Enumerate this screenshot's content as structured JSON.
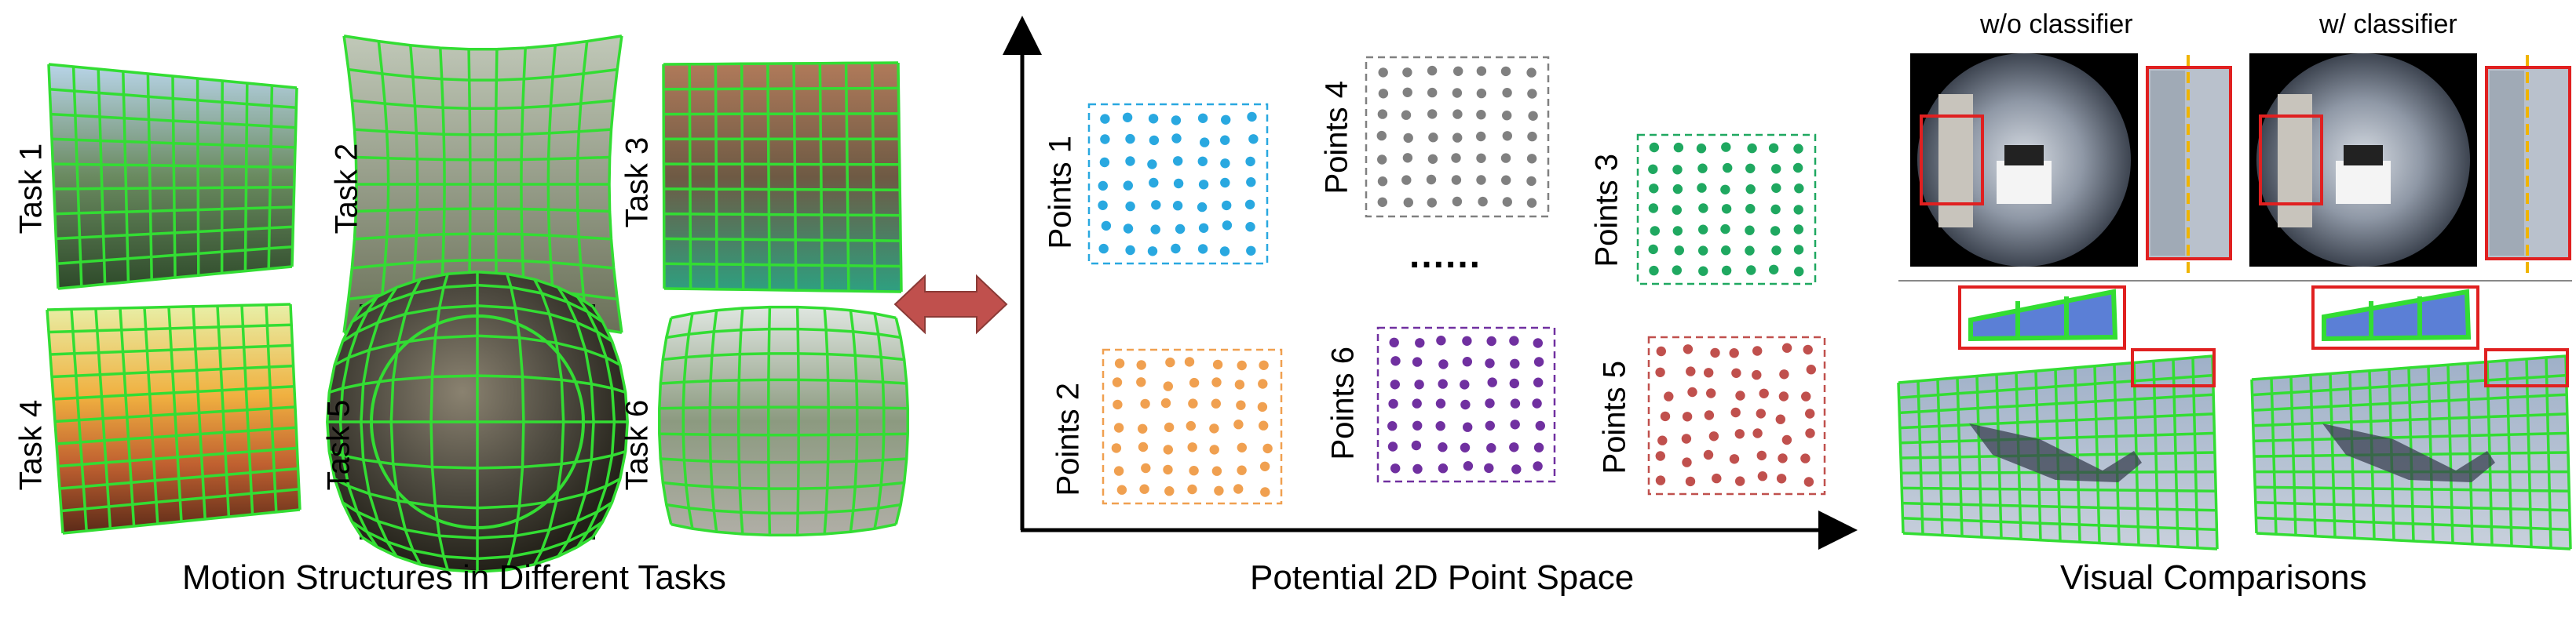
{
  "left_panel": {
    "caption": "Motion Structures in Different Tasks",
    "tasks": [
      {
        "label": "Task 1"
      },
      {
        "label": "Task 2"
      },
      {
        "label": "Task 3"
      },
      {
        "label": "Task 4"
      },
      {
        "label": "Task 5"
      },
      {
        "label": "Task 6"
      }
    ]
  },
  "middle_panel": {
    "caption": "Potential 2D Point Space",
    "ellipsis": "......",
    "point_sets": [
      {
        "label": "Points 1",
        "color": "#29a8e0"
      },
      {
        "label": "Points 2",
        "color": "#f0a050"
      },
      {
        "label": "Points 3",
        "color": "#1fa860"
      },
      {
        "label": "Points 4",
        "color": "#808080"
      },
      {
        "label": "Points 5",
        "color": "#c0504d"
      },
      {
        "label": "Points 6",
        "color": "#7030a0"
      }
    ]
  },
  "right_panel": {
    "caption": "Visual Comparisons",
    "columns": [
      {
        "label": "w/o classifier"
      },
      {
        "label": "w/ classifier"
      }
    ]
  },
  "colors": {
    "grid_green": "#33dd33",
    "highlight_red": "#e02020",
    "arrow_red": "#c0504d",
    "dashed_yellow": "#f0b400"
  }
}
